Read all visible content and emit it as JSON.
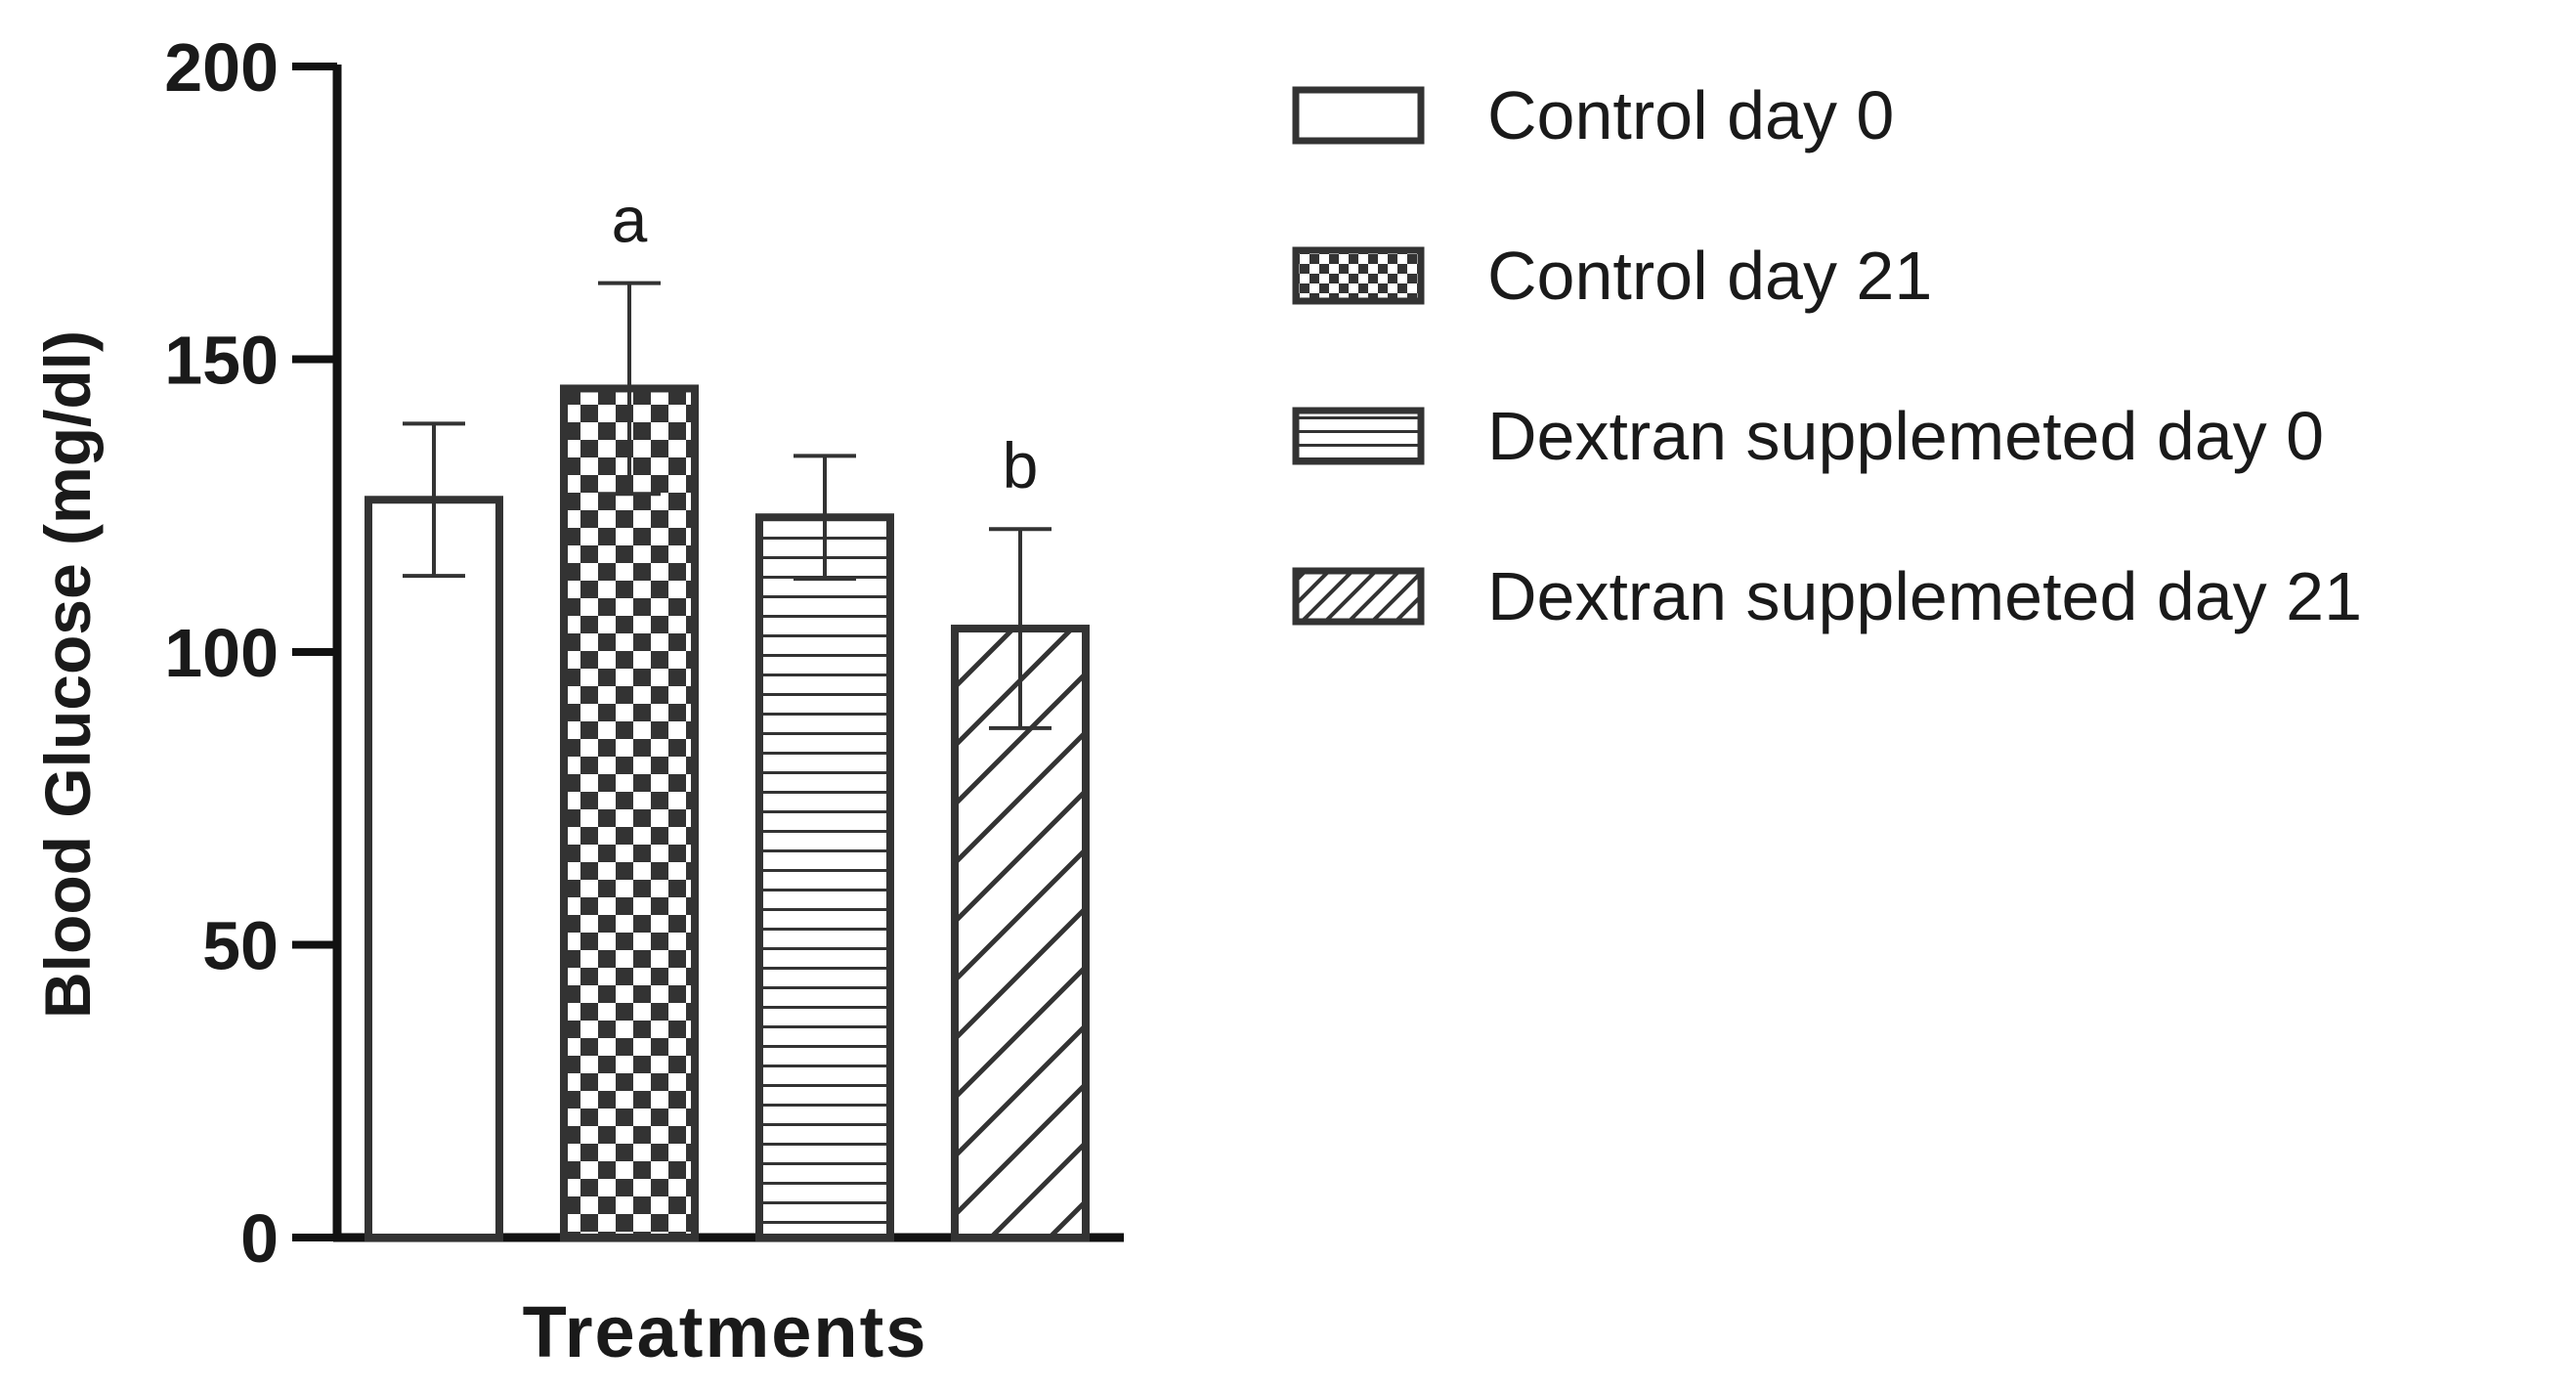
{
  "chart_data": {
    "type": "bar",
    "title": "",
    "ylabel": "Blood Glucose (mg/dl)",
    "xlabel": "Treatments",
    "ylim": [
      0,
      200
    ],
    "yticks": [
      0,
      50,
      100,
      150,
      200
    ],
    "grid": false,
    "legend_position": "right",
    "categories": [
      "Control day 0",
      "Control day 21",
      "Dextran supplemeted day 0",
      "Dextran supplemeted day 21"
    ],
    "values": [
      126,
      145,
      123,
      104
    ],
    "error": [
      13,
      18,
      10.5,
      17
    ],
    "patterns": [
      "empty",
      "checkerboard",
      "horizontal-lines",
      "diagonal-lines"
    ],
    "annotations": [
      "",
      "a",
      "",
      "b"
    ],
    "legend": [
      {
        "label": "Control day 0",
        "pattern": "empty"
      },
      {
        "label": "Control day 21",
        "pattern": "checkerboard"
      },
      {
        "label": "Dextran supplemeted day 0",
        "pattern": "horizontal-lines"
      },
      {
        "label": "Dextran supplemeted day 21",
        "pattern": "diagonal-lines"
      }
    ],
    "colors": {
      "stroke": "#333333",
      "fill": "#ffffff",
      "pattern": "#333333",
      "axis": "#111111"
    }
  }
}
